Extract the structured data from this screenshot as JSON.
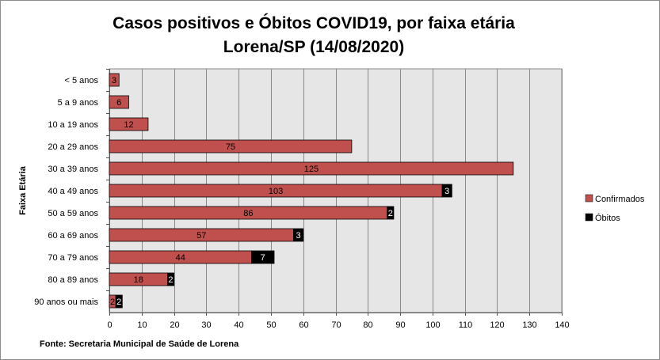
{
  "chart_data": {
    "type": "bar",
    "orientation": "horizontal",
    "stacked": true,
    "title": "Casos positivos e Óbitos COVID19, por faixa etária",
    "subtitle": "Lorena/SP (14/08/2020)",
    "ylabel": "Faixa Etária",
    "xlabel": "",
    "source": "Fonte: Secretaria Municipal  de Saúde de Lorena",
    "categories": [
      "< 5 anos",
      "5 a 9 anos",
      "10 a 19 anos",
      "20 a 29 anos",
      "30 a 39 anos",
      "40 a 49 anos",
      "50 a 59 anos",
      "60 a 69 anos",
      "70 a 79 anos",
      "80 a 89 anos",
      "90 anos ou mais"
    ],
    "series": [
      {
        "name": "Confirmados",
        "color": "#c0504d",
        "values": [
          3,
          6,
          12,
          75,
          125,
          103,
          86,
          57,
          44,
          18,
          2
        ]
      },
      {
        "name": "Óbitos",
        "color": "#000000",
        "values": [
          0,
          0,
          0,
          0,
          0,
          3,
          2,
          3,
          7,
          2,
          2
        ]
      }
    ],
    "data_labels": true,
    "xlim": [
      0,
      140
    ],
    "xticks": [
      0,
      10,
      20,
      30,
      40,
      50,
      60,
      70,
      80,
      90,
      100,
      110,
      120,
      130,
      140
    ],
    "grid": "vertical",
    "plot_background": "#e6e6e6",
    "legend_position": "right"
  }
}
